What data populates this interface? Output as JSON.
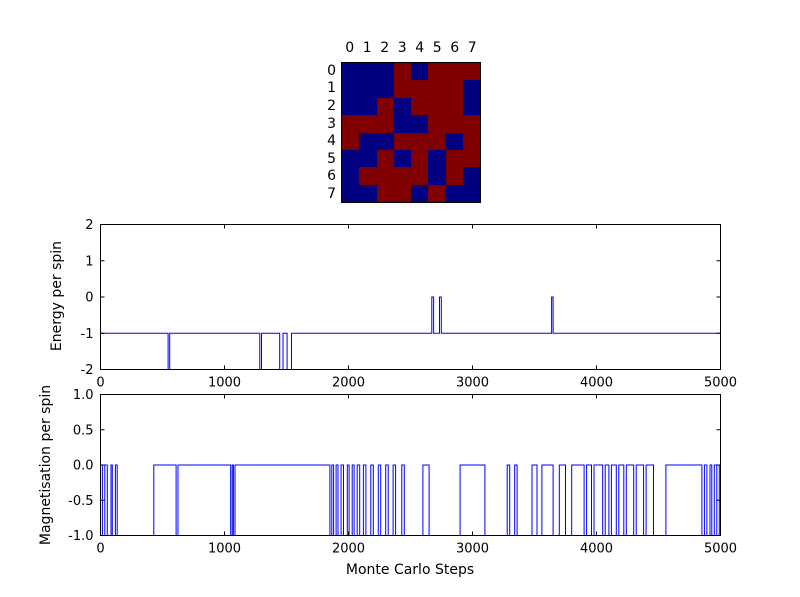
{
  "figure": {
    "background": "#ffffff",
    "line_color": "#0000ff",
    "frame_color": "#000000"
  },
  "chart_data": [
    {
      "type": "heatmap",
      "title": "",
      "x_tick_labels": [
        "0",
        "1",
        "2",
        "3",
        "4",
        "5",
        "6",
        "7"
      ],
      "y_tick_labels": [
        "0",
        "1",
        "2",
        "3",
        "4",
        "5",
        "6",
        "7"
      ],
      "colors": {
        "1": "#800000",
        "-1": "#000080"
      },
      "values": [
        [
          -1,
          -1,
          -1,
          1,
          -1,
          1,
          1,
          1
        ],
        [
          -1,
          -1,
          -1,
          1,
          1,
          1,
          1,
          -1
        ],
        [
          -1,
          -1,
          1,
          -1,
          1,
          1,
          1,
          -1
        ],
        [
          1,
          1,
          1,
          -1,
          -1,
          1,
          1,
          1
        ],
        [
          1,
          -1,
          -1,
          1,
          1,
          1,
          -1,
          1
        ],
        [
          -1,
          -1,
          1,
          -1,
          1,
          -1,
          1,
          1
        ],
        [
          -1,
          1,
          1,
          1,
          1,
          -1,
          1,
          -1
        ],
        [
          -1,
          -1,
          1,
          1,
          -1,
          1,
          -1,
          -1
        ]
      ]
    },
    {
      "type": "line",
      "title": "",
      "xlabel": "",
      "ylabel": "Energy per spin",
      "xlim": [
        0,
        5000
      ],
      "ylim": [
        -2,
        2
      ],
      "x_ticks": [
        0,
        1000,
        2000,
        3000,
        4000,
        5000
      ],
      "x_tick_labels": [
        "0",
        "1000",
        "2000",
        "3000",
        "4000",
        "5000"
      ],
      "y_ticks": [
        -2,
        -1,
        0,
        1,
        2
      ],
      "y_tick_labels": [
        "-2",
        "-1",
        "0",
        "1",
        "2"
      ],
      "grid": false,
      "series": [
        {
          "name": "energy",
          "points": [
            [
              0,
              -1
            ],
            [
              545,
              -1
            ],
            [
              545,
              -2
            ],
            [
              558,
              -2
            ],
            [
              558,
              -1
            ],
            [
              1285,
              -1
            ],
            [
              1285,
              -2
            ],
            [
              1298,
              -2
            ],
            [
              1298,
              -1
            ],
            [
              1445,
              -1
            ],
            [
              1445,
              -2
            ],
            [
              1472,
              -2
            ],
            [
              1472,
              -1
            ],
            [
              1505,
              -1
            ],
            [
              1505,
              -2
            ],
            [
              1540,
              -2
            ],
            [
              1540,
              -1
            ],
            [
              2672,
              -1
            ],
            [
              2672,
              0
            ],
            [
              2686,
              0
            ],
            [
              2686,
              -1
            ],
            [
              2734,
              -1
            ],
            [
              2734,
              0
            ],
            [
              2748,
              0
            ],
            [
              2748,
              -1
            ],
            [
              3638,
              -1
            ],
            [
              3638,
              0
            ],
            [
              3650,
              0
            ],
            [
              3650,
              -1
            ],
            [
              5000,
              -1
            ]
          ]
        }
      ]
    },
    {
      "type": "line",
      "title": "",
      "xlabel": "Monte Carlo Steps",
      "ylabel": "Magnetisation per spin",
      "xlim": [
        0,
        5000
      ],
      "ylim": [
        -1,
        1
      ],
      "x_ticks": [
        0,
        1000,
        2000,
        3000,
        4000,
        5000
      ],
      "x_tick_labels": [
        "0",
        "1000",
        "2000",
        "3000",
        "4000",
        "5000"
      ],
      "y_ticks": [
        -1,
        -0.5,
        0,
        0.5,
        1
      ],
      "y_tick_labels": [
        "-1.0",
        "-0.5",
        "0.0",
        "0.5",
        "1.0"
      ],
      "grid": false,
      "series": [
        {
          "name": "magnetisation",
          "start_y": 0,
          "levels": [
            0,
            -1
          ],
          "toggle_x": [
            15,
            35,
            55,
            85,
            95,
            120,
            135,
            430,
            610,
            625,
            1050,
            1062,
            1072,
            1085,
            1850,
            1865,
            1880,
            1900,
            1915,
            1940,
            1960,
            1990,
            2005,
            2030,
            2045,
            2070,
            2090,
            2120,
            2140,
            2180,
            2200,
            2240,
            2260,
            2300,
            2320,
            2360,
            2380,
            2430,
            2450,
            2600,
            2650,
            2900,
            3100,
            3280,
            3300,
            3340,
            3360,
            3480,
            3520,
            3560,
            3650,
            3700,
            3750,
            3800,
            3900,
            3920,
            3960,
            3980,
            4050,
            4070,
            4100,
            4120,
            4160,
            4180,
            4220,
            4240,
            4300,
            4320,
            4380,
            4400,
            4460,
            4560,
            4850,
            4870,
            4890,
            4915,
            4930,
            4950,
            4970,
            4990
          ]
        }
      ]
    }
  ]
}
